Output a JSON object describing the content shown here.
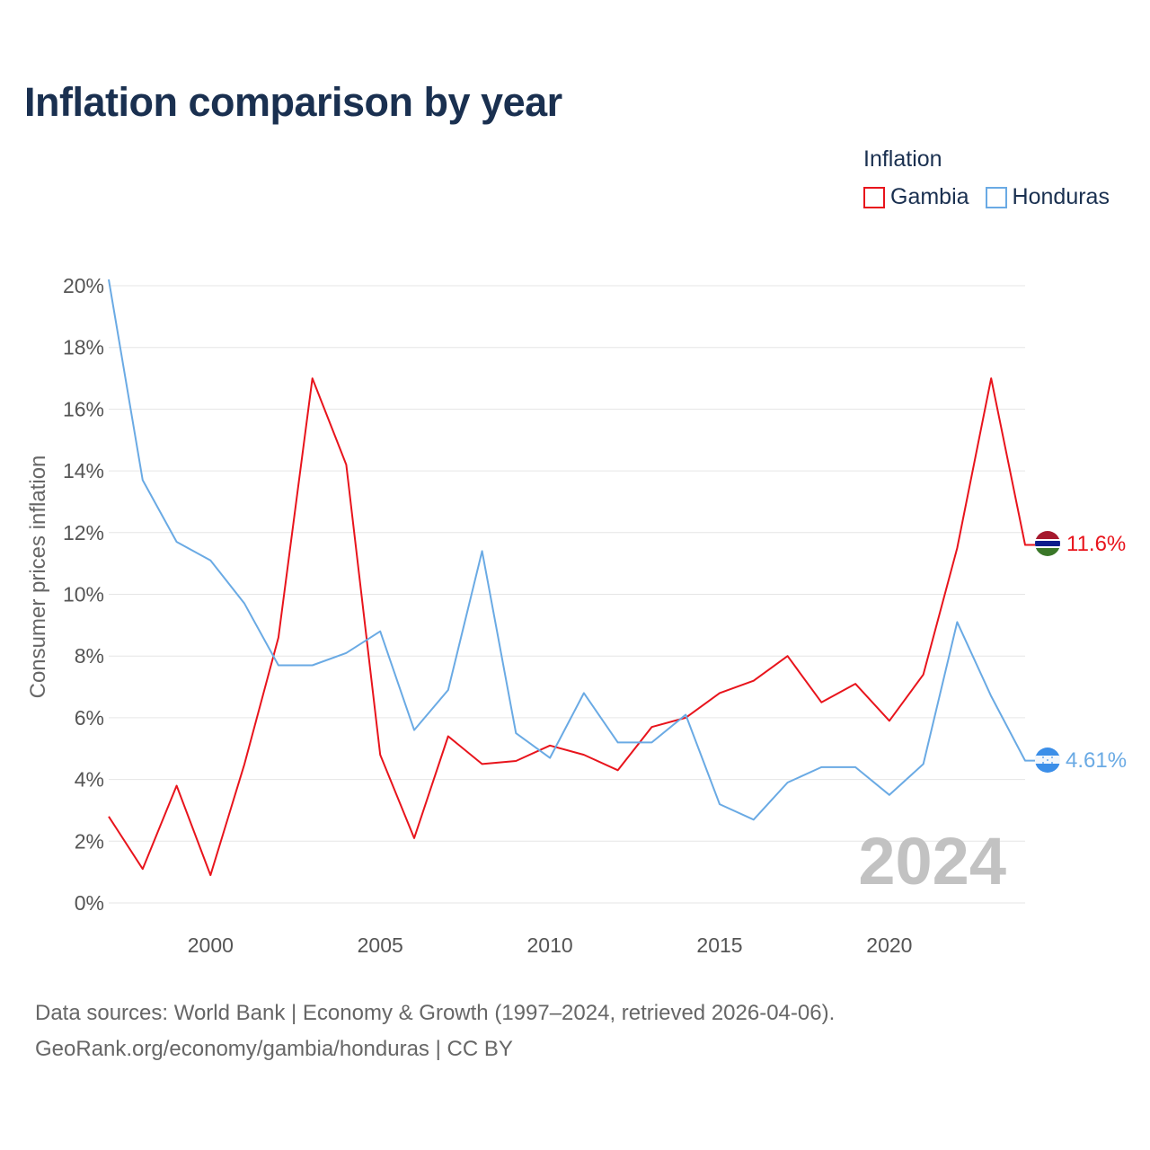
{
  "title": "Inflation comparison by year",
  "legend": {
    "title": "Inflation",
    "items": [
      {
        "name": "Gambia",
        "color": "#e8141c"
      },
      {
        "name": "Honduras",
        "color": "#6aaae4"
      }
    ]
  },
  "year_watermark": "2024",
  "end_labels": {
    "gambia": "11.6%",
    "honduras": "4.61%"
  },
  "source": {
    "line1": "Data sources: World Bank | Economy & Growth (1997–2024, retrieved 2026-04-06).",
    "line2": "GeoRank.org/economy/gambia/honduras | CC BY"
  },
  "chart_data": {
    "type": "line",
    "ylabel": "Consumer prices inflation",
    "xlabel": "",
    "ylim": [
      0,
      20
    ],
    "xlim": [
      1997,
      2024
    ],
    "yticks": [
      0,
      2,
      4,
      6,
      8,
      10,
      12,
      14,
      16,
      18,
      20
    ],
    "ytick_labels": [
      "0%",
      "2%",
      "4%",
      "6%",
      "8%",
      "10%",
      "12%",
      "14%",
      "16%",
      "18%",
      "20%"
    ],
    "xticks": [
      2000,
      2005,
      2010,
      2015,
      2020
    ],
    "xtick_labels": [
      "2000",
      "2005",
      "2010",
      "2015",
      "2020"
    ],
    "x": [
      1997,
      1998,
      1999,
      2000,
      2001,
      2002,
      2003,
      2004,
      2005,
      2006,
      2007,
      2008,
      2009,
      2010,
      2011,
      2012,
      2013,
      2014,
      2015,
      2016,
      2017,
      2018,
      2019,
      2020,
      2021,
      2022,
      2023,
      2024
    ],
    "series": [
      {
        "name": "Gambia",
        "color": "#e8141c",
        "values": [
          2.8,
          1.1,
          3.8,
          0.9,
          4.5,
          8.6,
          17.0,
          14.2,
          4.8,
          2.1,
          5.4,
          4.5,
          4.6,
          5.1,
          4.8,
          4.3,
          5.7,
          6.0,
          6.8,
          7.2,
          8.0,
          6.5,
          7.1,
          5.9,
          7.4,
          11.5,
          17.0,
          11.6
        ]
      },
      {
        "name": "Honduras",
        "color": "#6aaae4",
        "values": [
          20.2,
          13.7,
          11.7,
          11.1,
          9.7,
          7.7,
          7.7,
          8.1,
          8.8,
          5.6,
          6.9,
          11.4,
          5.5,
          4.7,
          6.8,
          5.2,
          5.2,
          6.1,
          3.2,
          2.7,
          3.9,
          4.4,
          4.4,
          3.5,
          4.5,
          9.1,
          6.7,
          4.61
        ]
      }
    ]
  }
}
